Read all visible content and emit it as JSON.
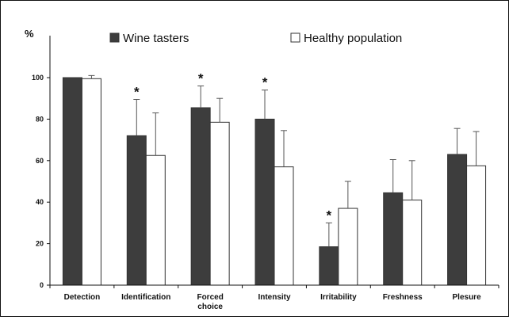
{
  "chart_data": {
    "type": "bar",
    "ylabel": "%",
    "ylim": [
      0,
      120
    ],
    "yticks": [
      0,
      20,
      40,
      60,
      80,
      100
    ],
    "grid": false,
    "legend_position": "top",
    "categories": [
      "Detection",
      "Identification",
      "Forced\nchoice",
      "Intensity",
      "Irritability",
      "Freshness",
      "Plesure"
    ],
    "series": [
      {
        "name": "Wine tasters",
        "color": "#3d3d3d",
        "values": [
          100,
          72,
          85.5,
          80,
          18.5,
          44.5,
          63
        ],
        "errors": [
          0,
          17.5,
          10.5,
          14,
          11.5,
          16,
          12.5
        ],
        "significance": [
          false,
          true,
          true,
          true,
          true,
          false,
          false
        ]
      },
      {
        "name": "Healthy population",
        "color": "#ffffff",
        "values": [
          99.5,
          62.5,
          78.5,
          57,
          37,
          41,
          57.5
        ],
        "errors": [
          1.5,
          20.5,
          11.5,
          17.5,
          13,
          19,
          16.5
        ]
      }
    ],
    "significance_marker": "*"
  }
}
